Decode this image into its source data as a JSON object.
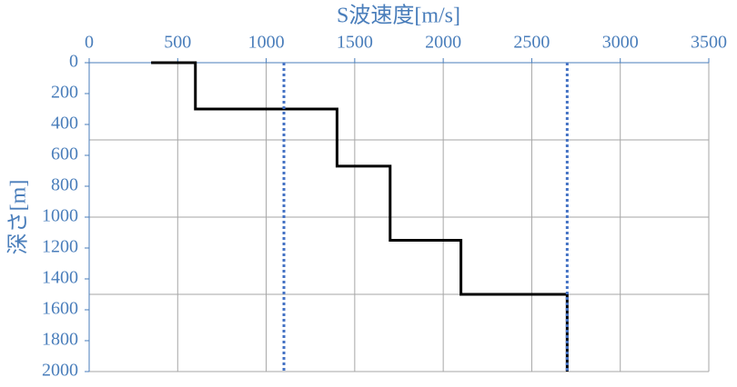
{
  "chart_data": {
    "type": "line",
    "title": "S波速度[m/s]",
    "y_label": "深さ[m]",
    "xlim": [
      0,
      3500
    ],
    "xticks": [
      0,
      500,
      1000,
      1500,
      2000,
      2500,
      3000,
      3500
    ],
    "ylim": [
      0,
      2000
    ],
    "yticks": [
      0,
      200,
      400,
      600,
      800,
      1000,
      1200,
      1400,
      1600,
      1800,
      2000
    ],
    "y_inverted": true,
    "x_axis_position": "top",
    "ygrid": [
      500,
      1000,
      1500
    ],
    "series": [
      {
        "color": "#000000",
        "style": "solid",
        "x": [
          350,
          600,
          600,
          1400,
          1400,
          1700,
          1700,
          2100,
          2100,
          2700,
          2700
        ],
        "y": [
          0,
          0,
          300,
          300,
          670,
          670,
          1150,
          1150,
          1500,
          1500,
          2000
        ]
      },
      {
        "color": "#4472c4",
        "style": "dotted",
        "x": [
          1100,
          1100
        ],
        "y": [
          0,
          2000
        ]
      },
      {
        "color": "#4472c4",
        "style": "dotted",
        "x": [
          2700,
          2700
        ],
        "y": [
          0,
          2000
        ]
      }
    ]
  }
}
